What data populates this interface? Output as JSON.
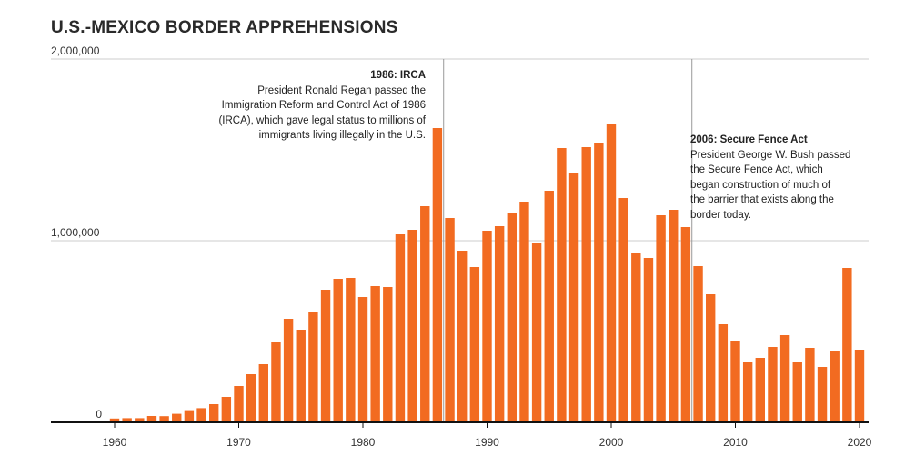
{
  "chart_data": {
    "type": "bar",
    "title": "U.S.-MEXICO BORDER APPREHENSIONS",
    "xlabel": "",
    "ylabel": "",
    "ylim": [
      0,
      2000000
    ],
    "xlim": [
      1955,
      2021
    ],
    "y_ticks": [
      {
        "value": 0,
        "label": "0"
      },
      {
        "value": 1000000,
        "label": "1,000,000"
      },
      {
        "value": 2000000,
        "label": "2,000,000"
      }
    ],
    "x_ticks": [
      1960,
      1970,
      1980,
      1990,
      2000,
      2010,
      2020
    ],
    "grid": true,
    "colors": {
      "bar": "#f26b21",
      "grid": "#cccccc",
      "axis": "#111111",
      "annotation_line": "#999999"
    },
    "x": [
      1960,
      1961,
      1962,
      1963,
      1964,
      1965,
      1966,
      1967,
      1968,
      1969,
      1970,
      1971,
      1972,
      1973,
      1974,
      1975,
      1976,
      1977,
      1978,
      1979,
      1980,
      1981,
      1982,
      1983,
      1984,
      1985,
      1986,
      1987,
      1988,
      1989,
      1990,
      1991,
      1992,
      1993,
      1994,
      1995,
      1996,
      1997,
      1998,
      1999,
      2000,
      2001,
      2002,
      2003,
      2004,
      2005,
      2006,
      2007,
      2008,
      2009,
      2010,
      2011,
      2012,
      2013,
      2014,
      2015,
      2016,
      2017,
      2018,
      2019,
      2020
    ],
    "values": [
      21000,
      23000,
      23000,
      35000,
      34000,
      47000,
      67000,
      78000,
      100000,
      140000,
      200000,
      265000,
      320000,
      440000,
      570000,
      510000,
      610000,
      730000,
      790000,
      795000,
      690000,
      750000,
      745000,
      1035000,
      1060000,
      1190000,
      1620000,
      1125000,
      945000,
      855000,
      1055000,
      1080000,
      1150000,
      1215000,
      985000,
      1275000,
      1510000,
      1370000,
      1515000,
      1535000,
      1645000,
      1235000,
      930000,
      905000,
      1140000,
      1170000,
      1075000,
      860000,
      705000,
      540000,
      445000,
      330000,
      355000,
      415000,
      480000,
      330000,
      410000,
      305000,
      395000,
      850000,
      400000
    ],
    "annotations": [
      {
        "year": 1986.5,
        "title": "1986: IRCA",
        "lines": [
          "President Ronald Regan passed the",
          "Immigration Reform and Control Act of 1986",
          "(IRCA), which gave legal status to millions of",
          "immigrants living illegally in the U.S."
        ]
      },
      {
        "year": 2006.5,
        "title": "2006: Secure Fence Act",
        "lines": [
          "President George W. Bush passed",
          "the Secure Fence Act, which",
          "began construction of much of",
          "the barrier that exists along the",
          "border today."
        ]
      }
    ]
  }
}
